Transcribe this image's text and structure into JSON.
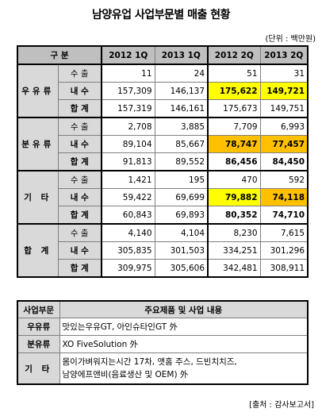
{
  "title": "남양유업 사업부문별 매출 현황",
  "unit": "(단위 : 백만원)",
  "source": "[출처 : 감사보고서]",
  "main_table": {
    "header": {
      "gubun": "구   분",
      "cols": [
        "2012 1Q",
        "2013 1Q",
        "2012 2Q",
        "2013 2Q"
      ]
    },
    "groups": [
      {
        "name": "우유류",
        "rows": [
          {
            "label": "수 출",
            "values": [
              "11",
              "24",
              "51",
              "31"
            ]
          },
          {
            "label": "내 수",
            "values": [
              "157,309",
              "146,137",
              "175,622",
              "149,721"
            ]
          },
          {
            "label": "합 계",
            "values": [
              "157,319",
              "146,161",
              "175,673",
              "149,751"
            ]
          }
        ]
      },
      {
        "name": "분유류",
        "rows": [
          {
            "label": "수 출",
            "values": [
              "2,708",
              "3,885",
              "7,709",
              "6,993"
            ]
          },
          {
            "label": "내 수",
            "values": [
              "89,104",
              "85,667",
              "78,747",
              "77,457"
            ]
          },
          {
            "label": "합 계",
            "values": [
              "91,813",
              "89,552",
              "86,456",
              "84,450"
            ]
          }
        ]
      },
      {
        "name": "기 타",
        "rows": [
          {
            "label": "수 출",
            "values": [
              "1,421",
              "195",
              "470",
              "592"
            ]
          },
          {
            "label": "내 수",
            "values": [
              "59,422",
              "69,699",
              "79,882",
              "74,118"
            ]
          },
          {
            "label": "합 계",
            "values": [
              "60,843",
              "69,893",
              "80,352",
              "74,710"
            ]
          }
        ]
      },
      {
        "name": "합 계",
        "rows": [
          {
            "label": "수 출",
            "values": [
              "4,140",
              "4,104",
              "8,230",
              "7,615"
            ]
          },
          {
            "label": "내 수",
            "values": [
              "305,835",
              "301,503",
              "334,251",
              "301,296"
            ]
          },
          {
            "label": "합 계",
            "values": [
              "309,975",
              "305,606",
              "342,481",
              "308,911"
            ]
          }
        ]
      }
    ],
    "highlight_colors": {
      "yellow": "#ffff00",
      "orange": "#ffc000",
      "header_gray": "#bfbfbf",
      "label_gray": "#d9d9d9"
    }
  },
  "desc_table": {
    "header": {
      "col1": "사업부문",
      "col2": "주요제품 및 사업 내용"
    },
    "rows": [
      {
        "name": "우유류",
        "lines": [
          "맛있는우유GT, 아인슈타인GT 外"
        ]
      },
      {
        "name": "분유류",
        "lines": [
          "XO FiveSolution 外"
        ]
      },
      {
        "name": "기 타",
        "lines": [
          "몸이가벼워지는시간 17차, 앳홈 주스, 드빈치치즈,",
          "남양에프앤비(음료생산 및 OEM) 外"
        ]
      }
    ]
  }
}
